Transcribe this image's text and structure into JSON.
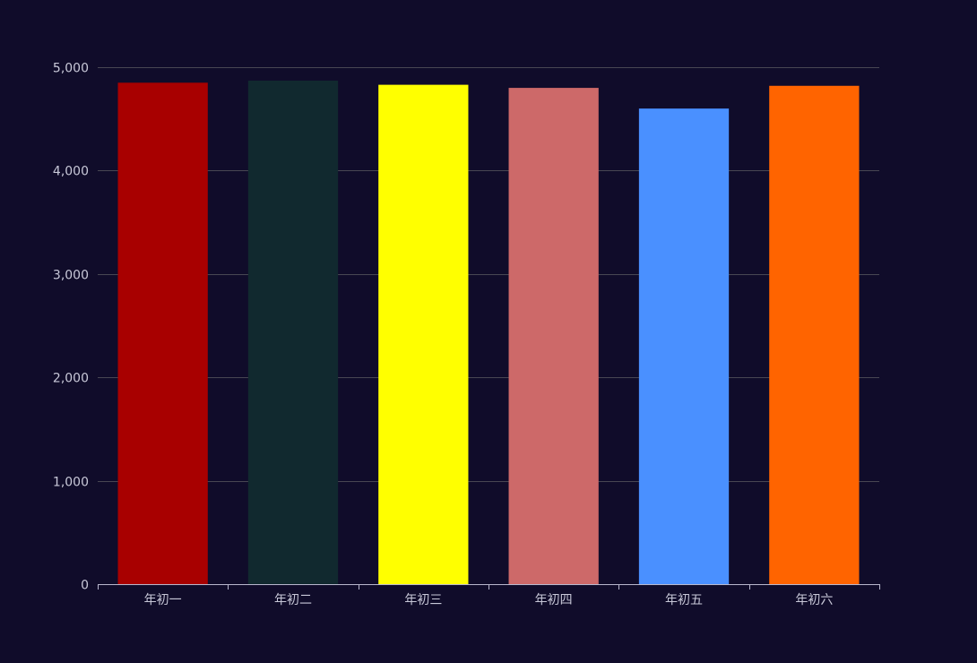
{
  "chart_data": {
    "type": "bar",
    "categories": [
      "年初一",
      "年初二",
      "年初三",
      "年初四",
      "年初五",
      "年初六"
    ],
    "values": [
      4850,
      4870,
      4830,
      4800,
      4600,
      4820
    ],
    "bar_colors": [
      "#a80000",
      "#11292f",
      "#ffff00",
      "#cd6969",
      "#4a90ff",
      "#ff6400"
    ],
    "ylim": [
      0,
      5000
    ],
    "yticks": [
      0,
      1000,
      2000,
      3000,
      4000,
      5000
    ],
    "ytick_labels": [
      "0",
      "1,000",
      "2,000",
      "3,000",
      "4,000",
      "5,000"
    ],
    "grid": true,
    "title": "",
    "xlabel": "",
    "ylabel": ""
  },
  "colors": {
    "background": "#100c2a",
    "grid": "#484753",
    "axis": "#b9b8ce",
    "text": "#c8c8d8"
  }
}
